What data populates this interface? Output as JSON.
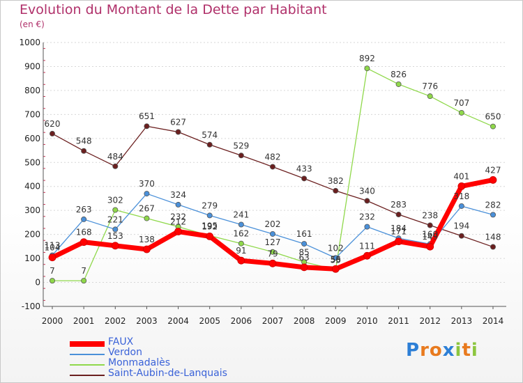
{
  "chart_data": {
    "type": "line",
    "title": "Evolution du Montant de la Dette par Habitant",
    "ylabel": "(en €)",
    "xlabel": "",
    "x": [
      "2000",
      "2001",
      "2002",
      "2003",
      "2004",
      "2005",
      "2006",
      "2007",
      "2008",
      "2009",
      "2010",
      "2011",
      "2012",
      "2013",
      "2014"
    ],
    "ylim": [
      -100,
      1000
    ],
    "yticks": [
      -100,
      0,
      100,
      200,
      300,
      400,
      500,
      600,
      700,
      800,
      900,
      1000
    ],
    "grid": "horizontal-dashed",
    "legend_position": "bottom-left",
    "series": [
      {
        "name": "FAUX",
        "color": "#ff0000",
        "values": [
          104,
          168,
          153,
          138,
          212,
          192,
          91,
          79,
          63,
          56,
          111,
          171,
          149,
          401,
          427
        ]
      },
      {
        "name": "Verdon",
        "color": "#4a90d9",
        "values": [
          113,
          263,
          221,
          370,
          324,
          279,
          241,
          202,
          161,
          102,
          232,
          184,
          160,
          318,
          282
        ]
      },
      {
        "name": "Monmadalès",
        "color": "#8fd84a",
        "values": [
          7,
          7,
          302,
          267,
          232,
          195,
          162,
          127,
          85,
          53,
          892,
          826,
          776,
          707,
          650
        ]
      },
      {
        "name": "Saint-Aubin-de-Lanquais",
        "color": "#6b1f1f",
        "values": [
          620,
          548,
          484,
          651,
          627,
          574,
          529,
          482,
          433,
          382,
          340,
          283,
          238,
          194,
          148
        ]
      }
    ]
  },
  "logo": {
    "letters": [
      "P",
      "r",
      "o",
      "x",
      "i",
      "t",
      "i"
    ],
    "colors": [
      "#2d7fd6",
      "#e87a1e",
      "#e87a1e",
      "#2d7fd6",
      "#8cc63f",
      "#e87a1e",
      "#8cc63f"
    ]
  }
}
